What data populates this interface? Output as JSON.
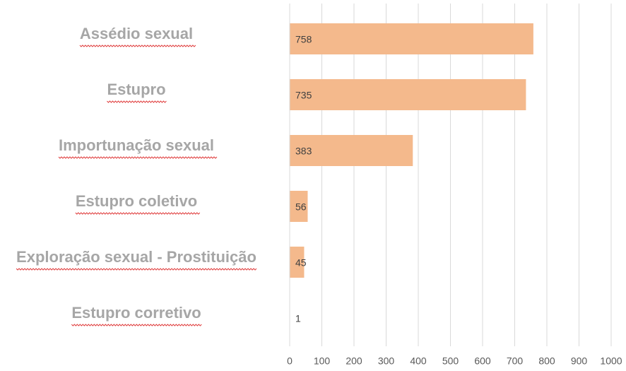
{
  "chart_data": {
    "type": "bar",
    "orientation": "horizontal",
    "categories": [
      "Assédio sexual",
      "Estupro",
      "Importunação sexual",
      "Estupro coletivo",
      "Exploração sexual - Prostituição",
      "Estupro corretivo"
    ],
    "values": [
      758,
      735,
      383,
      56,
      45,
      1
    ],
    "color": "#f4b98c",
    "xlim": [
      0,
      1000
    ],
    "xticks": [
      0,
      100,
      200,
      300,
      400,
      500,
      600,
      700,
      800,
      900,
      1000
    ],
    "grid": true
  }
}
